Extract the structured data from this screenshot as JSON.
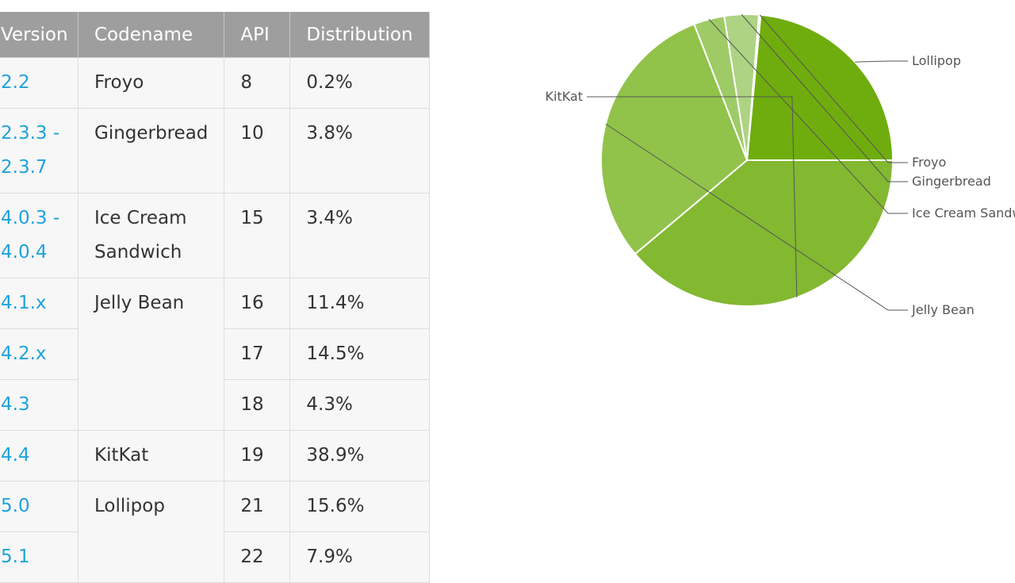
{
  "table": {
    "headers": [
      "Version",
      "Codename",
      "API",
      "Distribution"
    ],
    "rows": [
      {
        "version": "2.2",
        "codename": "Froyo",
        "codename_rowspan": 1,
        "api": "8",
        "distribution": "0.2%"
      },
      {
        "version": "2.3.3 -\n2.3.7",
        "codename": "Gingerbread",
        "codename_rowspan": 1,
        "api": "10",
        "distribution": "3.8%"
      },
      {
        "version": "4.0.3 -\n4.0.4",
        "codename": "Ice Cream\nSandwich",
        "codename_rowspan": 1,
        "api": "15",
        "distribution": "3.4%"
      },
      {
        "version": "4.1.x",
        "codename": "Jelly Bean",
        "codename_rowspan": 3,
        "api": "16",
        "distribution": "11.4%"
      },
      {
        "version": "4.2.x",
        "codename": null,
        "api": "17",
        "distribution": "14.5%"
      },
      {
        "version": "4.3",
        "codename": null,
        "api": "18",
        "distribution": "4.3%"
      },
      {
        "version": "4.4",
        "codename": "KitKat",
        "codename_rowspan": 1,
        "api": "19",
        "distribution": "38.9%"
      },
      {
        "version": "5.0",
        "codename": "Lollipop",
        "codename_rowspan": 2,
        "api": "21",
        "distribution": "15.6%"
      },
      {
        "version": "5.1",
        "codename": null,
        "api": "22",
        "distribution": "7.9%"
      }
    ]
  },
  "chart_data": {
    "type": "pie",
    "title": "",
    "slices": [
      {
        "label": "Lollipop",
        "value": 23.5,
        "color": "#6fad0e"
      },
      {
        "label": "Froyo",
        "value": 0.2,
        "color": "#b5d989"
      },
      {
        "label": "Gingerbread",
        "value": 3.8,
        "color": "#add383"
      },
      {
        "label": "Ice Cream Sandwich",
        "value": 3.4,
        "color": "#9ecb66"
      },
      {
        "label": "Jelly Bean",
        "value": 30.2,
        "color": "#91c24a"
      },
      {
        "label": "KitKat",
        "value": 38.9,
        "color": "#83b831"
      }
    ],
    "start": "3 o'clock",
    "direction": "counterclockwise",
    "legend": "leader-line labels"
  }
}
